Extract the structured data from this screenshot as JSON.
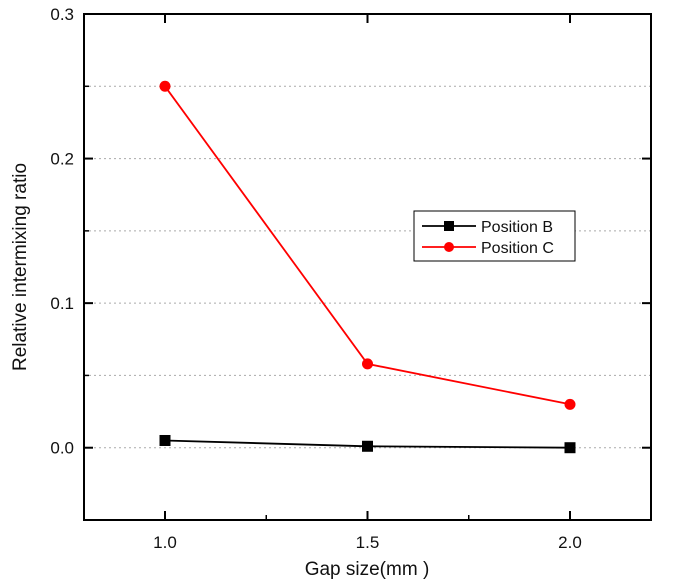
{
  "chart_data": {
    "type": "line",
    "title": "",
    "xlabel": "Gap size(mm )",
    "ylabel": "Relative intermixing ratio",
    "x": [
      1.0,
      1.5,
      2.0
    ],
    "x_tick_labels": [
      "1.0",
      "1.5",
      "2.0"
    ],
    "y_tick_labels": [
      "0.0",
      "0.1",
      "0.2",
      "0.3"
    ],
    "xlim": [
      0.8,
      2.2
    ],
    "ylim": [
      -0.05,
      0.3
    ],
    "grid": "horizontal dotted",
    "legend_position": "center-right",
    "series": [
      {
        "name": "Position B",
        "values": [
          0.005,
          0.001,
          0.0
        ],
        "color": "#000000",
        "marker": "square"
      },
      {
        "name": "Position C",
        "values": [
          0.25,
          0.058,
          0.03
        ],
        "color": "#ff0000",
        "marker": "circle"
      }
    ]
  }
}
